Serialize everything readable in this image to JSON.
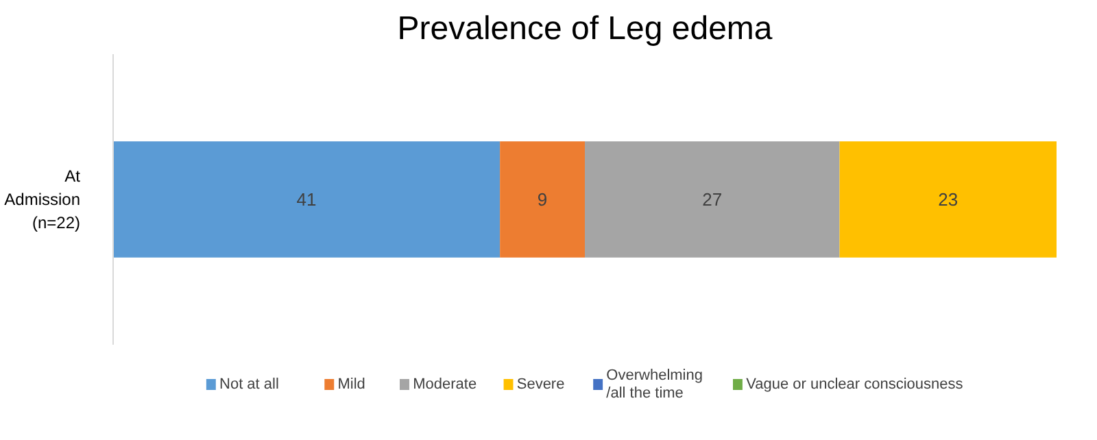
{
  "chart_data": {
    "type": "bar",
    "title": "Prevalence of Leg edema",
    "orientation": "horizontal",
    "stacked": true,
    "data_labels": true,
    "legend": "bottom",
    "grid": false,
    "tick_labels": "y",
    "categories": [
      "At\nAdmission\n(n=22)"
    ],
    "series": [
      {
        "name": "Not at all",
        "color": "#5b9bd5",
        "values": [
          41
        ]
      },
      {
        "name": "Mild",
        "color": "#ed7d31",
        "values": [
          9
        ]
      },
      {
        "name": "Moderate",
        "color": "#a5a5a5",
        "values": [
          27
        ]
      },
      {
        "name": "Severe",
        "color": "#ffc000",
        "values": [
          23
        ]
      },
      {
        "name": "Overwhelming\n/all the time",
        "color": "#4472c4",
        "values": [
          null
        ]
      },
      {
        "name": "Vague or unclear consciousness",
        "color": "#70ad47",
        "values": [
          null
        ]
      }
    ]
  }
}
